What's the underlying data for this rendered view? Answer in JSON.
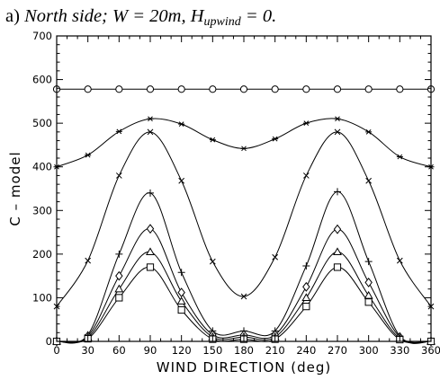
{
  "title": {
    "panel": "a)",
    "text": "North side; W = 20m, H",
    "subscript": "upwind",
    "suffix": " = 0."
  },
  "chart_data": {
    "type": "line",
    "title": "a) North side; W = 20m, Hupwind = 0.",
    "xlabel": "WIND DIRECTION (deg)",
    "ylabel": "C  –  model",
    "xlim": [
      0,
      360
    ],
    "ylim": [
      0,
      700
    ],
    "xticks": [
      0,
      30,
      60,
      90,
      120,
      150,
      180,
      210,
      240,
      270,
      300,
      330,
      360
    ],
    "yticks": [
      0,
      100,
      200,
      300,
      400,
      500,
      600,
      700
    ],
    "grid": false,
    "x": [
      0,
      30,
      60,
      90,
      120,
      150,
      180,
      210,
      240,
      270,
      300,
      330,
      360
    ],
    "series": [
      {
        "marker": "circle",
        "values": [
          578,
          578,
          578,
          578,
          578,
          578,
          578,
          578,
          578,
          578,
          578,
          578,
          578
        ]
      },
      {
        "marker": "asterisk",
        "values": [
          400,
          427,
          481,
          510,
          498,
          462,
          442,
          464,
          500,
          510,
          480,
          423,
          400
        ]
      },
      {
        "marker": "x",
        "values": [
          80,
          185,
          380,
          480,
          368,
          183,
          103,
          193,
          380,
          480,
          368,
          185,
          80
        ]
      },
      {
        "marker": "plus",
        "values": [
          0,
          15,
          200,
          340,
          158,
          24,
          24,
          24,
          173,
          343,
          183,
          12,
          0
        ]
      },
      {
        "marker": "diamond",
        "values": [
          0,
          12,
          150,
          258,
          112,
          15,
          15,
          15,
          125,
          257,
          135,
          10,
          0
        ]
      },
      {
        "marker": "triangle",
        "values": [
          0,
          9,
          120,
          205,
          92,
          10,
          10,
          10,
          100,
          205,
          105,
          7,
          0
        ]
      },
      {
        "marker": "square",
        "values": [
          0,
          6,
          100,
          170,
          72,
          5,
          5,
          5,
          80,
          170,
          90,
          4,
          0
        ]
      }
    ]
  }
}
